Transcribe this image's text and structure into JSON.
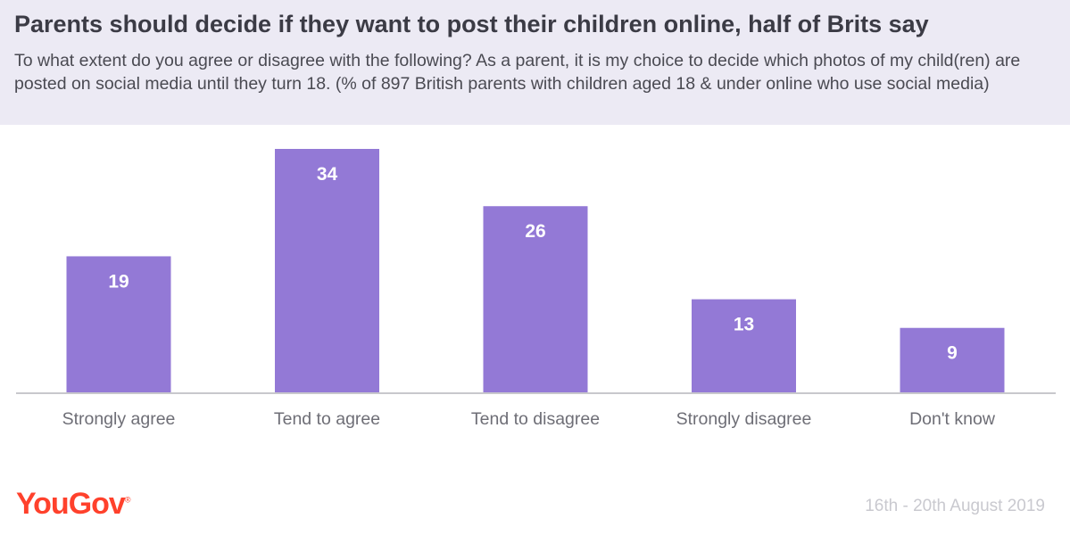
{
  "header": {
    "title": "Parents should decide if they want to post their children online, half of Brits say",
    "subtitle": "To what extent do you agree or disagree with the following? As a parent, it is my choice to decide which photos of my child(ren) are posted on social media until they turn 18. (% of 897 British parents with children aged 18 & under online who use social media)"
  },
  "chart_data": {
    "type": "bar",
    "categories": [
      "Strongly agree",
      "Tend to agree",
      "Tend to disagree",
      "Strongly disagree",
      "Don't know"
    ],
    "values": [
      19,
      34,
      26,
      13,
      9
    ],
    "ylim": [
      0,
      34
    ],
    "grid": false,
    "colors": {
      "bar": "#9379d6",
      "label": "#ffffff",
      "axis": "#c8c8cc",
      "tick": "#6e6e76"
    }
  },
  "footer": {
    "logo": "YouGov",
    "logo_mark": "®",
    "date": "16th - 20th August 2019"
  }
}
